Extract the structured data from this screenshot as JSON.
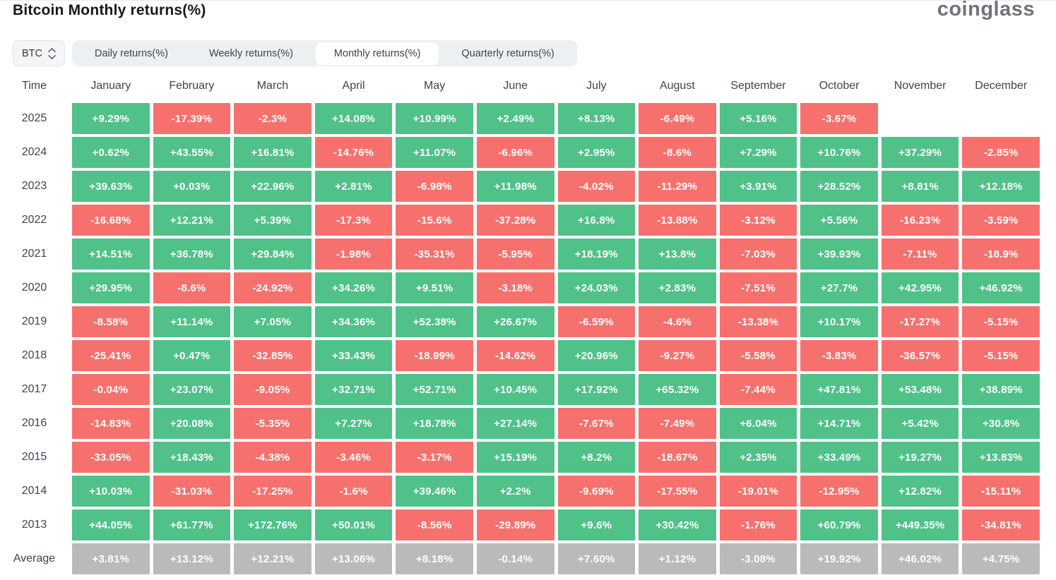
{
  "page": {
    "title": "Bitcoin Monthly returns(%)",
    "logo": "coinglass"
  },
  "controls": {
    "symbol_select": {
      "value": "BTC"
    },
    "tabs": [
      {
        "label": "Daily returns(%)",
        "active": false
      },
      {
        "label": "Weekly returns(%)",
        "active": false
      },
      {
        "label": "Monthly returns(%)",
        "active": true
      },
      {
        "label": "Quarterly returns(%)",
        "active": false
      }
    ]
  },
  "chart_data": {
    "type": "heatmap",
    "title": "Bitcoin Monthly returns(%)",
    "value_format": "percent",
    "row_header": "Time",
    "columns": [
      "January",
      "February",
      "March",
      "April",
      "May",
      "June",
      "July",
      "August",
      "September",
      "October",
      "November",
      "December"
    ],
    "rows": [
      {
        "label": "2025",
        "average": false,
        "values": [
          "+9.29%",
          "-17.39%",
          "-2.3%",
          "+14.08%",
          "+10.99%",
          "+2.49%",
          "+8.13%",
          "-6.49%",
          "+5.16%",
          "-3.67%",
          null,
          null
        ]
      },
      {
        "label": "2024",
        "average": false,
        "values": [
          "+0.62%",
          "+43.55%",
          "+16.81%",
          "-14.76%",
          "+11.07%",
          "-6.96%",
          "+2.95%",
          "-8.6%",
          "+7.29%",
          "+10.76%",
          "+37.29%",
          "-2.85%"
        ]
      },
      {
        "label": "2023",
        "average": false,
        "values": [
          "+39.63%",
          "+0.03%",
          "+22.96%",
          "+2.81%",
          "-6.98%",
          "+11.98%",
          "-4.02%",
          "-11.29%",
          "+3.91%",
          "+28.52%",
          "+8.81%",
          "+12.18%"
        ]
      },
      {
        "label": "2022",
        "average": false,
        "values": [
          "-16.68%",
          "+12.21%",
          "+5.39%",
          "-17.3%",
          "-15.6%",
          "-37.28%",
          "+16.8%",
          "-13.88%",
          "-3.12%",
          "+5.56%",
          "-16.23%",
          "-3.59%"
        ]
      },
      {
        "label": "2021",
        "average": false,
        "values": [
          "+14.51%",
          "+36.78%",
          "+29.84%",
          "-1.98%",
          "-35.31%",
          "-5.95%",
          "+18.19%",
          "+13.8%",
          "-7.03%",
          "+39.93%",
          "-7.11%",
          "-18.9%"
        ]
      },
      {
        "label": "2020",
        "average": false,
        "values": [
          "+29.95%",
          "-8.6%",
          "-24.92%",
          "+34.26%",
          "+9.51%",
          "-3.18%",
          "+24.03%",
          "+2.83%",
          "-7.51%",
          "+27.7%",
          "+42.95%",
          "+46.92%"
        ]
      },
      {
        "label": "2019",
        "average": false,
        "values": [
          "-8.58%",
          "+11.14%",
          "+7.05%",
          "+34.36%",
          "+52.38%",
          "+26.67%",
          "-6.59%",
          "-4.6%",
          "-13.38%",
          "+10.17%",
          "-17.27%",
          "-5.15%"
        ]
      },
      {
        "label": "2018",
        "average": false,
        "values": [
          "-25.41%",
          "+0.47%",
          "-32.85%",
          "+33.43%",
          "-18.99%",
          "-14.62%",
          "+20.96%",
          "-9.27%",
          "-5.58%",
          "-3.83%",
          "-36.57%",
          "-5.15%"
        ]
      },
      {
        "label": "2017",
        "average": false,
        "values": [
          "-0.04%",
          "+23.07%",
          "-9.05%",
          "+32.71%",
          "+52.71%",
          "+10.45%",
          "+17.92%",
          "+65.32%",
          "-7.44%",
          "+47.81%",
          "+53.48%",
          "+38.89%"
        ]
      },
      {
        "label": "2016",
        "average": false,
        "values": [
          "-14.83%",
          "+20.08%",
          "-5.35%",
          "+7.27%",
          "+18.78%",
          "+27.14%",
          "-7.67%",
          "-7.49%",
          "+6.04%",
          "+14.71%",
          "+5.42%",
          "+30.8%"
        ]
      },
      {
        "label": "2015",
        "average": false,
        "values": [
          "-33.05%",
          "+18.43%",
          "-4.38%",
          "-3.46%",
          "-3.17%",
          "+15.19%",
          "+8.2%",
          "-18.67%",
          "+2.35%",
          "+33.49%",
          "+19.27%",
          "+13.83%"
        ]
      },
      {
        "label": "2014",
        "average": false,
        "values": [
          "+10.03%",
          "-31.03%",
          "-17.25%",
          "-1.6%",
          "+39.46%",
          "+2.2%",
          "-9.69%",
          "-17.55%",
          "-19.01%",
          "-12.95%",
          "+12.82%",
          "-15.11%"
        ]
      },
      {
        "label": "2013",
        "average": false,
        "values": [
          "+44.05%",
          "+61.77%",
          "+172.76%",
          "+50.01%",
          "-8.56%",
          "-29.89%",
          "+9.6%",
          "+30.42%",
          "-1.76%",
          "+60.79%",
          "+449.35%",
          "-34.81%"
        ]
      },
      {
        "label": "Average",
        "average": true,
        "values": [
          "+3.81%",
          "+13.12%",
          "+12.21%",
          "+13.06%",
          "+8.18%",
          "-0.14%",
          "+7.60%",
          "+1.12%",
          "-3.08%",
          "+19.92%",
          "+46.02%",
          "+4.75%"
        ]
      }
    ],
    "colors": {
      "positive": "#50c189",
      "negative": "#f6716d",
      "average": "#bababc"
    }
  }
}
